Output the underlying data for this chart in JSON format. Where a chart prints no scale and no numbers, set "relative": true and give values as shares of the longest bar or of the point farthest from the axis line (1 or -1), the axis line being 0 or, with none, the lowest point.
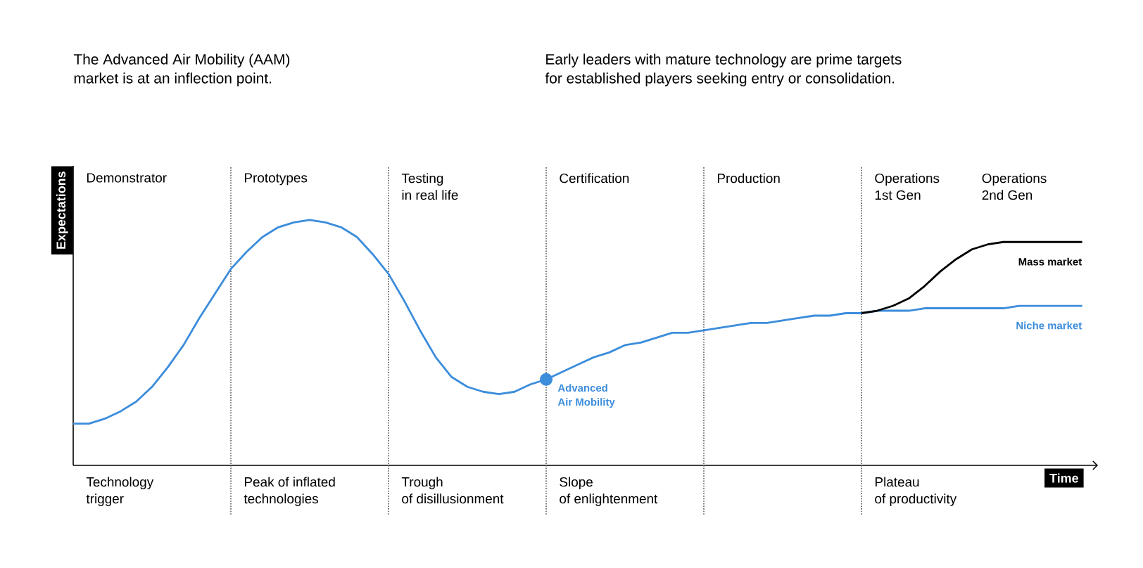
{
  "chart_data": {
    "type": "line",
    "relative": true,
    "grid": "x",
    "xlabel": "Time",
    "ylabel": "Expectations",
    "annotations": [
      "The Advanced Air Mobility (AAM)\nmarket is at an inflection point.",
      "Early leaders with mature technology are prime targets\nfor established players seeking entry or consolidation.",
      "Advanced\nAir Mobility",
      "Demonstrator",
      "Prototypes",
      "Testing\nin real life",
      "Certification",
      "Production",
      "Operations\n1st Gen",
      "Operations\n2nd Gen",
      "Technology\ntrigger",
      "Peak of inflated\ntechnologies",
      "Trough\nof disillusionment",
      "Slope\nof enlightenment",
      "Plateau\nof productivity"
    ],
    "categories": [
      null,
      null,
      null,
      null,
      null,
      null,
      null,
      null,
      null,
      null,
      null,
      null,
      null,
      null,
      null,
      null,
      null,
      null,
      null,
      null,
      null,
      null,
      null,
      null,
      null,
      null,
      null,
      null,
      null,
      null,
      null,
      null,
      null,
      null,
      null,
      null,
      null,
      null,
      null,
      null,
      null,
      null,
      null,
      null,
      null,
      null,
      null,
      null,
      null,
      null,
      null,
      null,
      null,
      null,
      null,
      null,
      null,
      null,
      null,
      null,
      null,
      null,
      null,
      null,
      null
    ],
    "series": [
      {
        "name": "Niche market",
        "color": "#3c8ddb",
        "values": [
          0.17,
          0.17,
          0.19,
          0.22,
          0.26,
          0.32,
          0.4,
          0.49,
          0.6,
          0.7,
          0.8,
          0.87,
          0.93,
          0.97,
          0.99,
          1,
          0.99,
          0.97,
          0.93,
          0.86,
          0.78,
          0.67,
          0.55,
          0.44,
          0.36,
          0.32,
          0.3,
          0.29,
          0.3,
          0.33,
          0.35,
          0.38,
          0.41,
          0.44,
          0.46,
          0.49,
          0.5,
          0.52,
          0.54,
          0.54,
          0.55,
          0.56,
          0.57,
          0.58,
          0.58,
          0.59,
          0.6,
          0.61,
          0.61,
          0.62,
          0.62,
          0.63,
          0.63,
          0.63,
          0.64,
          0.64,
          0.64,
          0.64,
          0.64,
          0.64,
          0.65,
          0.65,
          0.65,
          0.65,
          0.65
        ]
      },
      {
        "name": "Mass market",
        "color": "#000000",
        "values": [
          null,
          null,
          null,
          null,
          null,
          null,
          null,
          null,
          null,
          null,
          null,
          null,
          null,
          null,
          null,
          null,
          null,
          null,
          null,
          null,
          null,
          null,
          null,
          null,
          null,
          null,
          null,
          null,
          null,
          null,
          null,
          null,
          null,
          null,
          null,
          null,
          null,
          null,
          null,
          null,
          null,
          null,
          null,
          null,
          null,
          null,
          null,
          null,
          null,
          null,
          0.62,
          0.63,
          0.65,
          0.68,
          0.73,
          0.79,
          0.84,
          0.88,
          0.9,
          0.91,
          0.91,
          0.91,
          0.91,
          0.91,
          0.91
        ]
      }
    ]
  }
}
